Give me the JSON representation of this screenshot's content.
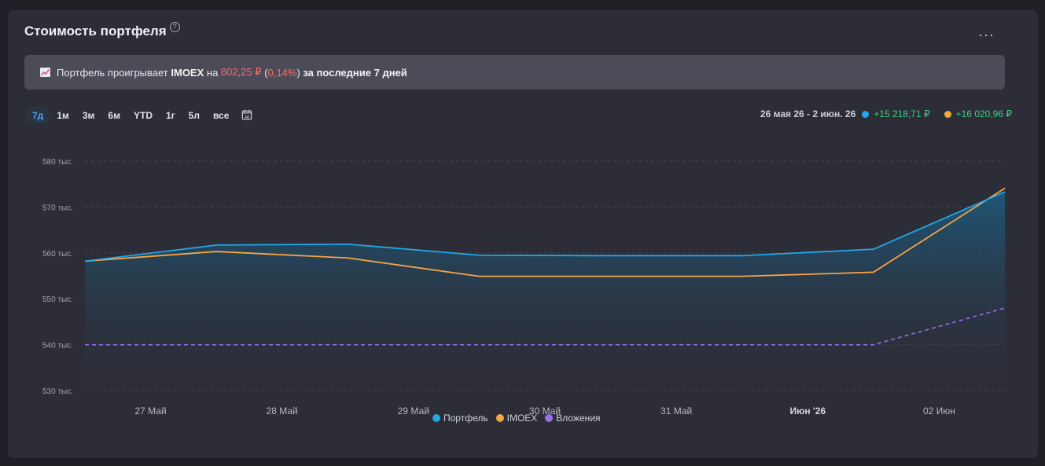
{
  "header": {
    "title": "Стоимость портфеля",
    "help_glyph": "?",
    "more_glyph": "···"
  },
  "banner": {
    "text_prefix": "Портфель проигрывает ",
    "index": "IMOEX",
    "text_mid": " на ",
    "amount": "802,25 ₽",
    "open_paren": " (",
    "percent": "0,14%",
    "close_paren": ")",
    "text_suffix": " за последние 7 дней"
  },
  "ranges": {
    "items": [
      "7д",
      "1м",
      "3м",
      "6м",
      "YTD",
      "1г",
      "5л",
      "все"
    ],
    "active_index": 0
  },
  "summary": {
    "period": "26 мая 26 - 2 июн. 26",
    "portfolio_change": "+15 218,71 ₽",
    "imoex_change": "+16 020,96 ₽"
  },
  "colors": {
    "portfolio": "#1fa9e8",
    "imoex": "#f7a442",
    "investments": "#9a6cf0",
    "positive": "#39d17f",
    "negative": "#ff6b6b",
    "accent": "#4aa3f0"
  },
  "chart_data": {
    "type": "line",
    "x": [
      "2026-05-26",
      "2026-05-27",
      "2026-05-28",
      "2026-05-29",
      "2026-05-30",
      "2026-05-31",
      "2026-06-01",
      "2026-06-02"
    ],
    "x_tick_labels": [
      "27 Май",
      "28 Май",
      "29 Май",
      "30 Май",
      "31 Май",
      "Июн '26",
      "02 Июн"
    ],
    "y_tick_labels": [
      "580 тыс.",
      "570 тыс.",
      "560 тыс.",
      "550 тыс.",
      "540 тыс.",
      "530 тыс."
    ],
    "y_ticks": [
      580000,
      570000,
      560000,
      550000,
      540000,
      530000
    ],
    "ylim": [
      529500,
      580000
    ],
    "grid": true,
    "legend": "bottom",
    "series": [
      {
        "name": "Портфель",
        "values": [
          558200,
          561700,
          561900,
          559500,
          559400,
          559400,
          560800,
          573300
        ]
      },
      {
        "name": "IMOEX",
        "values": [
          558200,
          560300,
          558900,
          554900,
          554900,
          554900,
          555800,
          574100
        ]
      },
      {
        "name": "Вложения",
        "values": [
          540000,
          540000,
          540000,
          540000,
          540000,
          540000,
          540000,
          548000
        ]
      }
    ]
  }
}
